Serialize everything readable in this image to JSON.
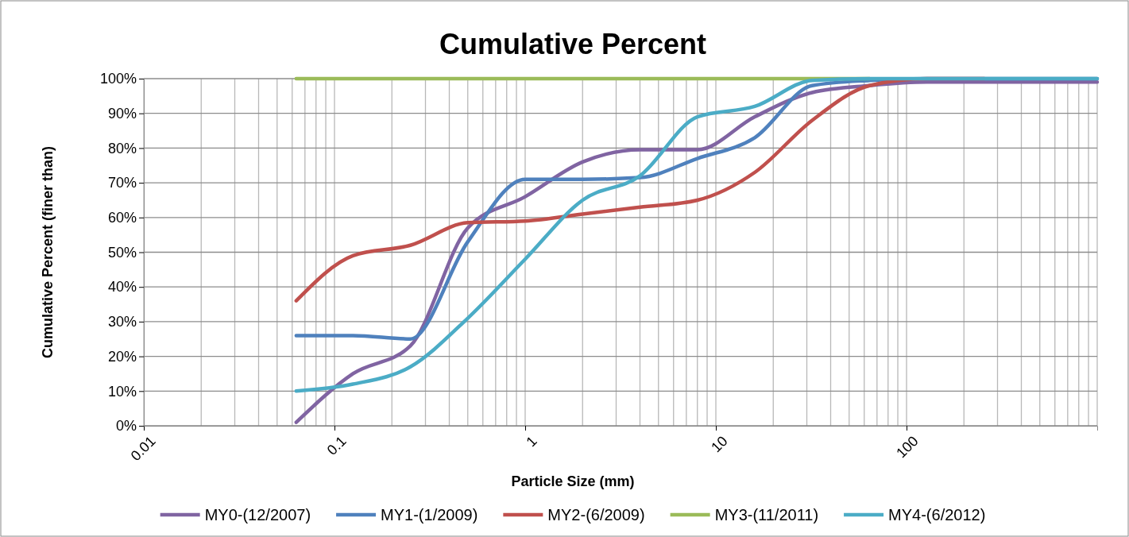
{
  "chart_data": {
    "type": "line",
    "title": "Cumulative Percent",
    "xlabel": "Particle Size (mm)",
    "ylabel": "Cumulative Percent (finer than)",
    "x": [
      0.063,
      0.125,
      0.25,
      0.5,
      1,
      2,
      4,
      8,
      16,
      32,
      64,
      128,
      256,
      512,
      1000
    ],
    "series": [
      {
        "name": "MY0-(12/2007)",
        "color": "#8064a2",
        "values": [
          1,
          15,
          23,
          57,
          66,
          76,
          79.5,
          79.5,
          89,
          96,
          98,
          99,
          99,
          99,
          99
        ]
      },
      {
        "name": "MY1-(1/2009)",
        "color": "#4f81bd",
        "values": [
          26,
          26,
          25,
          53,
          71,
          71,
          71.5,
          77,
          83,
          98,
          99.5,
          100,
          100,
          100,
          100
        ]
      },
      {
        "name": "MY2-(6/2009)",
        "color": "#c0504d",
        "values": [
          36,
          49,
          52,
          58.5,
          59,
          61,
          63,
          65,
          73,
          88,
          98,
          100,
          100,
          null,
          null
        ]
      },
      {
        "name": "MY3-(11/2011)",
        "color": "#9bbb59",
        "values": [
          100,
          100,
          100,
          100,
          100,
          100,
          100,
          100,
          100,
          100,
          100,
          null,
          null,
          null,
          null
        ]
      },
      {
        "name": "MY4-(6/2012)",
        "color": "#4bacc6",
        "values": [
          10,
          12,
          17,
          31,
          48,
          65,
          72,
          89,
          92,
          99.5,
          100,
          100,
          100,
          100,
          100
        ]
      }
    ],
    "log": "x",
    "xlim": [
      0.01,
      1000
    ],
    "xticks": [
      0.01,
      0.1,
      1,
      10,
      100
    ],
    "ylim": [
      0,
      100
    ],
    "yticks": [
      {
        "value": 0,
        "label": "0%"
      },
      {
        "value": 10,
        "label": "10%"
      },
      {
        "value": 20,
        "label": "20%"
      },
      {
        "value": 30,
        "label": "30%"
      },
      {
        "value": 40,
        "label": "40%"
      },
      {
        "value": 50,
        "label": "50%"
      },
      {
        "value": 60,
        "label": "60%"
      },
      {
        "value": 70,
        "label": "70%"
      },
      {
        "value": 80,
        "label": "80%"
      },
      {
        "value": 90,
        "label": "90%"
      },
      {
        "value": 100,
        "label": "100%"
      }
    ],
    "grid": true,
    "legend": "bottom",
    "marker": "none",
    "line_style": "solid"
  }
}
